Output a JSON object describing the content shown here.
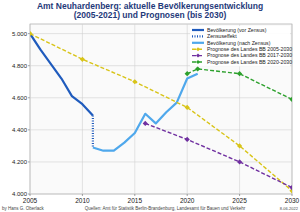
{
  "chart_data": {
    "type": "line",
    "title": "Amt Neuhardenberg: aktuelle Bevölkerungsentwicklung (2005-2021) und Prognosen (bis 2030)",
    "xlim": [
      2005,
      2030
    ],
    "xticks": [
      2005,
      2010,
      2015,
      2020,
      2025,
      2030
    ],
    "ylim": [
      4000,
      5060
    ],
    "yticks": [
      {
        "value": 4000,
        "label": "4.000"
      },
      {
        "value": 4200,
        "label": "4.200"
      },
      {
        "value": 4400,
        "label": "4.400"
      },
      {
        "value": 4600,
        "label": "4.600"
      },
      {
        "value": 4800,
        "label": "4.800"
      },
      {
        "value": 5000,
        "label": "5.000"
      }
    ],
    "grid": true,
    "legend": "upper right",
    "series": [
      {
        "name": "Bevölkerung (vor Zensus)",
        "color": "#1f5bbd",
        "line_style": "solid",
        "marker": "none",
        "x": [
          2005,
          2006,
          2007,
          2008,
          2009,
          2010,
          2011
        ],
        "values": [
          5000,
          4900,
          4810,
          4720,
          4610,
          4560,
          4490
        ]
      },
      {
        "name": "Zensuseffekt",
        "color": "#1f5bbd",
        "line_style": "dotted",
        "marker": "none",
        "x": [
          2011,
          2011
        ],
        "values": [
          4490,
          4290
        ]
      },
      {
        "name": "Bevölkerung (nach Zensus)",
        "color": "#4fa8ec",
        "line_style": "solid",
        "marker": "none",
        "x": [
          2011,
          2012,
          2013,
          2014,
          2015,
          2016,
          2017,
          2018,
          2019,
          2020,
          2021
        ],
        "values": [
          4290,
          4270,
          4270,
          4320,
          4380,
          4500,
          4440,
          4510,
          4570,
          4720,
          4750
        ]
      },
      {
        "name": "Prognose des Landes BB 2005-2030",
        "color": "#d8c418",
        "line_style": "dashed",
        "marker": "diamond",
        "x": [
          2005,
          2010,
          2015,
          2020,
          2025,
          2030
        ],
        "values": [
          5000,
          4840,
          4700,
          4540,
          4300,
          4020
        ]
      },
      {
        "name": "Prognose des Landes BB 2017-2030",
        "color": "#7030a0",
        "line_style": "dashed",
        "marker": "diamond",
        "x": [
          2016,
          2020,
          2025,
          2030
        ],
        "values": [
          4440,
          4340,
          4200,
          4040
        ]
      },
      {
        "name": "Prognose des Landes BB 2020-2030",
        "color": "#2ca02c",
        "line_style": "dashed",
        "marker": "diamond",
        "x": [
          2020,
          2021,
          2025,
          2030
        ],
        "values": [
          4750,
          4780,
          4750,
          4590
        ]
      }
    ],
    "author": "by Hans G. Oberlack",
    "source": "Quellen: Amt für Statistik Berlin-Brandenburg, Landesamt für Bauen und Verkehr",
    "date": "8-06-2022"
  }
}
